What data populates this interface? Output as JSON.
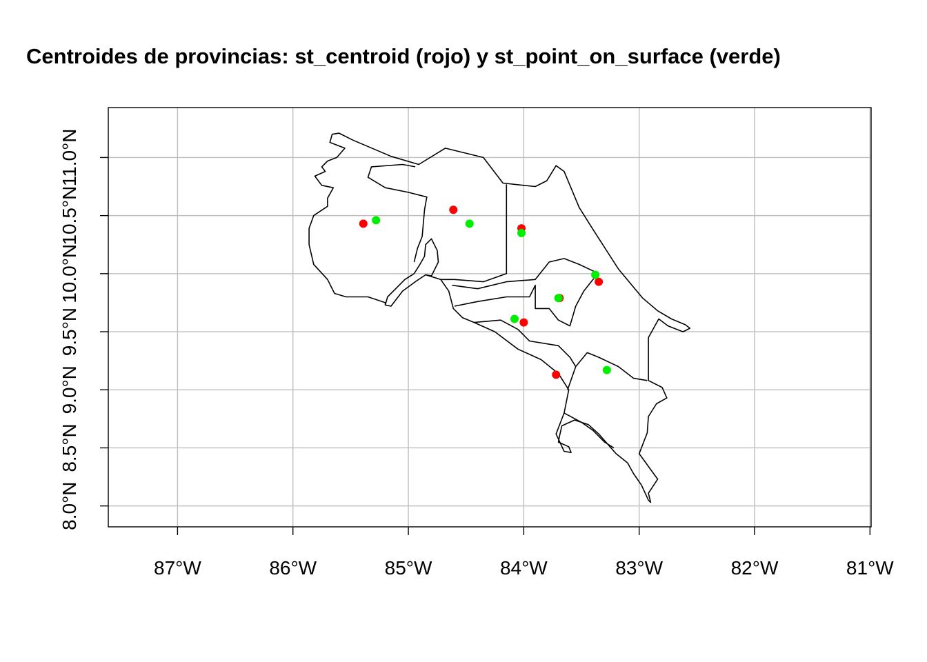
{
  "chart_data": {
    "type": "map",
    "title": "Centroides de provincias: st_centroid (rojo) y st_point_on_surface (verde)",
    "xlim": [
      -87.6,
      -80.99
    ],
    "ylim": [
      7.82,
      11.43
    ],
    "x_ticks": [
      -87,
      -86,
      -85,
      -84,
      -83,
      -82,
      -81
    ],
    "x_tick_labels": [
      "87°W",
      "86°W",
      "85°W",
      "84°W",
      "83°W",
      "82°W",
      "81°W"
    ],
    "y_ticks": [
      8.0,
      8.5,
      9.0,
      9.5,
      10.0,
      10.5,
      11.0
    ],
    "y_tick_labels": [
      "8.0°N",
      "8.5°N",
      "9.0°N",
      "9.5°N",
      "10.0°N",
      "10.5°N",
      "11.0°N"
    ],
    "grid": true,
    "series": [
      {
        "method": "st_centroid",
        "color": "#ff0000",
        "points": [
          {
            "x": -85.39,
            "y": 10.43
          },
          {
            "x": -84.61,
            "y": 10.55
          },
          {
            "x": -84.02,
            "y": 10.39
          },
          {
            "x": -83.35,
            "y": 9.93
          },
          {
            "x": -83.69,
            "y": 9.79
          },
          {
            "x": -84.0,
            "y": 9.58
          },
          {
            "x": -83.72,
            "y": 9.13
          }
        ]
      },
      {
        "method": "st_point_on_surface",
        "color": "#00ee00",
        "points": [
          {
            "x": -85.28,
            "y": 10.46
          },
          {
            "x": -84.47,
            "y": 10.43
          },
          {
            "x": -84.02,
            "y": 10.35
          },
          {
            "x": -83.38,
            "y": 9.99
          },
          {
            "x": -83.7,
            "y": 9.79
          },
          {
            "x": -84.08,
            "y": 9.61
          },
          {
            "x": -83.28,
            "y": 9.17
          }
        ]
      }
    ],
    "boundaries": {
      "outline": [
        [
          -85.6,
          11.21
        ],
        [
          -85.48,
          11.15
        ],
        [
          -85.15,
          11.01
        ],
        [
          -84.91,
          10.94
        ],
        [
          -84.68,
          11.08
        ],
        [
          -84.35,
          11.0
        ],
        [
          -84.18,
          10.78
        ],
        [
          -84.0,
          10.76
        ],
        [
          -83.9,
          10.75
        ],
        [
          -83.8,
          10.8
        ],
        [
          -83.72,
          10.93
        ],
        [
          -83.65,
          10.88
        ],
        [
          -83.52,
          10.57
        ],
        [
          -83.4,
          10.38
        ],
        [
          -83.18,
          10.04
        ],
        [
          -82.97,
          9.79
        ],
        [
          -82.84,
          9.68
        ],
        [
          -82.72,
          9.61
        ],
        [
          -82.6,
          9.56
        ],
        [
          -82.56,
          9.53
        ],
        [
          -82.62,
          9.5
        ],
        [
          -82.75,
          9.55
        ],
        [
          -82.83,
          9.61
        ],
        [
          -82.92,
          9.45
        ],
        [
          -82.92,
          9.08
        ],
        [
          -82.8,
          9.02
        ],
        [
          -82.76,
          8.93
        ],
        [
          -82.85,
          8.88
        ],
        [
          -82.92,
          8.77
        ],
        [
          -82.93,
          8.63
        ],
        [
          -83.0,
          8.45
        ],
        [
          -82.92,
          8.34
        ],
        [
          -82.84,
          8.23
        ],
        [
          -82.92,
          8.11
        ],
        [
          -82.9,
          8.03
        ],
        [
          -82.92,
          8.05
        ],
        [
          -82.98,
          8.18
        ],
        [
          -83.05,
          8.28
        ],
        [
          -83.1,
          8.37
        ],
        [
          -83.2,
          8.45
        ],
        [
          -83.35,
          8.62
        ],
        [
          -83.44,
          8.7
        ],
        [
          -83.56,
          8.74
        ],
        [
          -83.67,
          8.69
        ],
        [
          -83.69,
          8.6
        ],
        [
          -83.7,
          8.55
        ],
        [
          -83.61,
          8.51
        ],
        [
          -83.59,
          8.46
        ],
        [
          -83.65,
          8.47
        ],
        [
          -83.72,
          8.62
        ],
        [
          -83.65,
          8.8
        ],
        [
          -83.61,
          9.0
        ],
        [
          -83.7,
          9.14
        ],
        [
          -83.85,
          9.26
        ],
        [
          -84.05,
          9.35
        ],
        [
          -84.25,
          9.5
        ],
        [
          -84.43,
          9.58
        ],
        [
          -84.53,
          9.62
        ],
        [
          -84.61,
          9.7
        ],
        [
          -84.65,
          9.85
        ],
        [
          -84.72,
          9.95
        ],
        [
          -84.85,
          9.99
        ],
        [
          -84.94,
          9.93
        ],
        [
          -85.05,
          9.85
        ],
        [
          -85.15,
          9.72
        ],
        [
          -85.2,
          9.73
        ],
        [
          -85.2,
          9.75
        ],
        [
          -85.35,
          9.8
        ],
        [
          -85.54,
          9.8
        ],
        [
          -85.64,
          9.83
        ],
        [
          -85.7,
          9.95
        ],
        [
          -85.82,
          10.08
        ],
        [
          -85.86,
          10.25
        ],
        [
          -85.86,
          10.39
        ],
        [
          -85.82,
          10.5
        ],
        [
          -85.7,
          10.58
        ],
        [
          -85.7,
          10.65
        ],
        [
          -85.65,
          10.74
        ],
        [
          -85.75,
          10.76
        ],
        [
          -85.81,
          10.84
        ],
        [
          -85.72,
          10.88
        ],
        [
          -85.75,
          10.92
        ],
        [
          -85.7,
          10.97
        ],
        [
          -85.62,
          11.0
        ],
        [
          -85.55,
          11.08
        ],
        [
          -85.68,
          11.13
        ],
        [
          -85.66,
          11.2
        ],
        [
          -85.6,
          11.21
        ]
      ],
      "nicoya_gulf_west": [
        [
          -85.2,
          9.73
        ],
        [
          -85.18,
          9.8
        ],
        [
          -85.1,
          9.88
        ],
        [
          -85.03,
          9.95
        ],
        [
          -84.95,
          10.0
        ],
        [
          -84.9,
          10.08
        ],
        [
          -84.86,
          10.15
        ],
        [
          -84.85,
          10.25
        ],
        [
          -84.8,
          10.3
        ],
        [
          -84.75,
          10.2
        ],
        [
          -84.74,
          10.1
        ],
        [
          -84.8,
          9.98
        ],
        [
          -84.85,
          9.99
        ]
      ],
      "inner_lines": [
        [
          [
            -84.95,
            10.1
          ],
          [
            -84.92,
            10.22
          ],
          [
            -84.88,
            10.32
          ],
          [
            -84.86,
            10.55
          ],
          [
            -84.84,
            10.66
          ],
          [
            -85.0,
            10.7
          ],
          [
            -85.2,
            10.74
          ],
          [
            -85.35,
            10.83
          ],
          [
            -85.32,
            10.92
          ],
          [
            -85.05,
            10.94
          ],
          [
            -84.94,
            10.92
          ]
        ],
        [
          [
            -84.15,
            10.77
          ],
          [
            -84.15,
            10.4
          ],
          [
            -84.15,
            10.0
          ],
          [
            -84.35,
            9.93
          ],
          [
            -84.6,
            9.95
          ],
          [
            -84.72,
            9.95
          ]
        ],
        [
          [
            -84.62,
            9.9
          ],
          [
            -84.4,
            9.87
          ],
          [
            -84.15,
            9.93
          ],
          [
            -83.9,
            9.95
          ],
          [
            -83.78,
            10.1
          ],
          [
            -83.65,
            10.13
          ],
          [
            -83.52,
            10.08
          ],
          [
            -83.35,
            10.0
          ]
        ],
        [
          [
            -84.6,
            9.72
          ],
          [
            -84.4,
            9.76
          ],
          [
            -84.15,
            9.8
          ],
          [
            -83.95,
            9.8
          ],
          [
            -83.9,
            9.9
          ],
          [
            -83.9,
            9.7
          ],
          [
            -83.78,
            9.7
          ],
          [
            -83.7,
            9.6
          ],
          [
            -83.6,
            9.55
          ],
          [
            -83.55,
            9.72
          ],
          [
            -83.48,
            9.85
          ],
          [
            -83.4,
            9.95
          ],
          [
            -83.35,
            10.0
          ]
        ],
        [
          [
            -84.43,
            9.58
          ],
          [
            -84.2,
            9.6
          ],
          [
            -84.05,
            9.52
          ],
          [
            -83.95,
            9.42
          ],
          [
            -83.7,
            9.38
          ],
          [
            -83.6,
            9.28
          ],
          [
            -83.55,
            9.2
          ],
          [
            -83.62,
            9.0
          ]
        ],
        [
          [
            -83.55,
            9.2
          ],
          [
            -83.45,
            9.32
          ],
          [
            -83.35,
            9.28
          ],
          [
            -83.18,
            9.2
          ],
          [
            -83.05,
            9.1
          ],
          [
            -82.93,
            9.08
          ]
        ],
        [
          [
            -83.65,
            8.8
          ],
          [
            -83.5,
            8.72
          ],
          [
            -83.4,
            8.65
          ],
          [
            -83.3,
            8.55
          ],
          [
            -83.22,
            8.5
          ]
        ]
      ]
    }
  }
}
